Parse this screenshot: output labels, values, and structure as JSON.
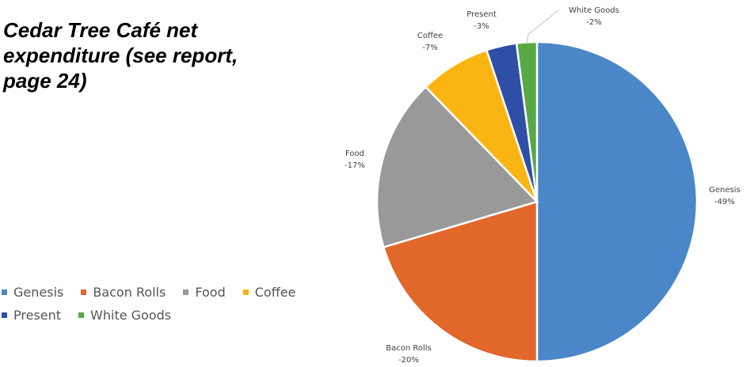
{
  "title": "Cedar Tree Café net expenditure (see report, page 24)",
  "chart_data": {
    "type": "pie",
    "title": "Cedar Tree Café net expenditure (see report, page 24)",
    "legend_placement": "left-bottom",
    "slices": [
      {
        "name": "Genesis",
        "value": 49,
        "label": "-49%",
        "color": "#4a86c8"
      },
      {
        "name": "Bacon Rolls",
        "value": 20,
        "label": "-20%",
        "color": "#e2672a"
      },
      {
        "name": "Food",
        "value": 17,
        "label": "-17%",
        "color": "#999999"
      },
      {
        "name": "Coffee",
        "value": 7,
        "label": "-7%",
        "color": "#fbb512"
      },
      {
        "name": "Present",
        "value": 3,
        "label": "-3%",
        "color": "#2f4fa6"
      },
      {
        "name": "White Goods",
        "value": 2,
        "label": "-2%",
        "color": "#58a846"
      }
    ]
  }
}
